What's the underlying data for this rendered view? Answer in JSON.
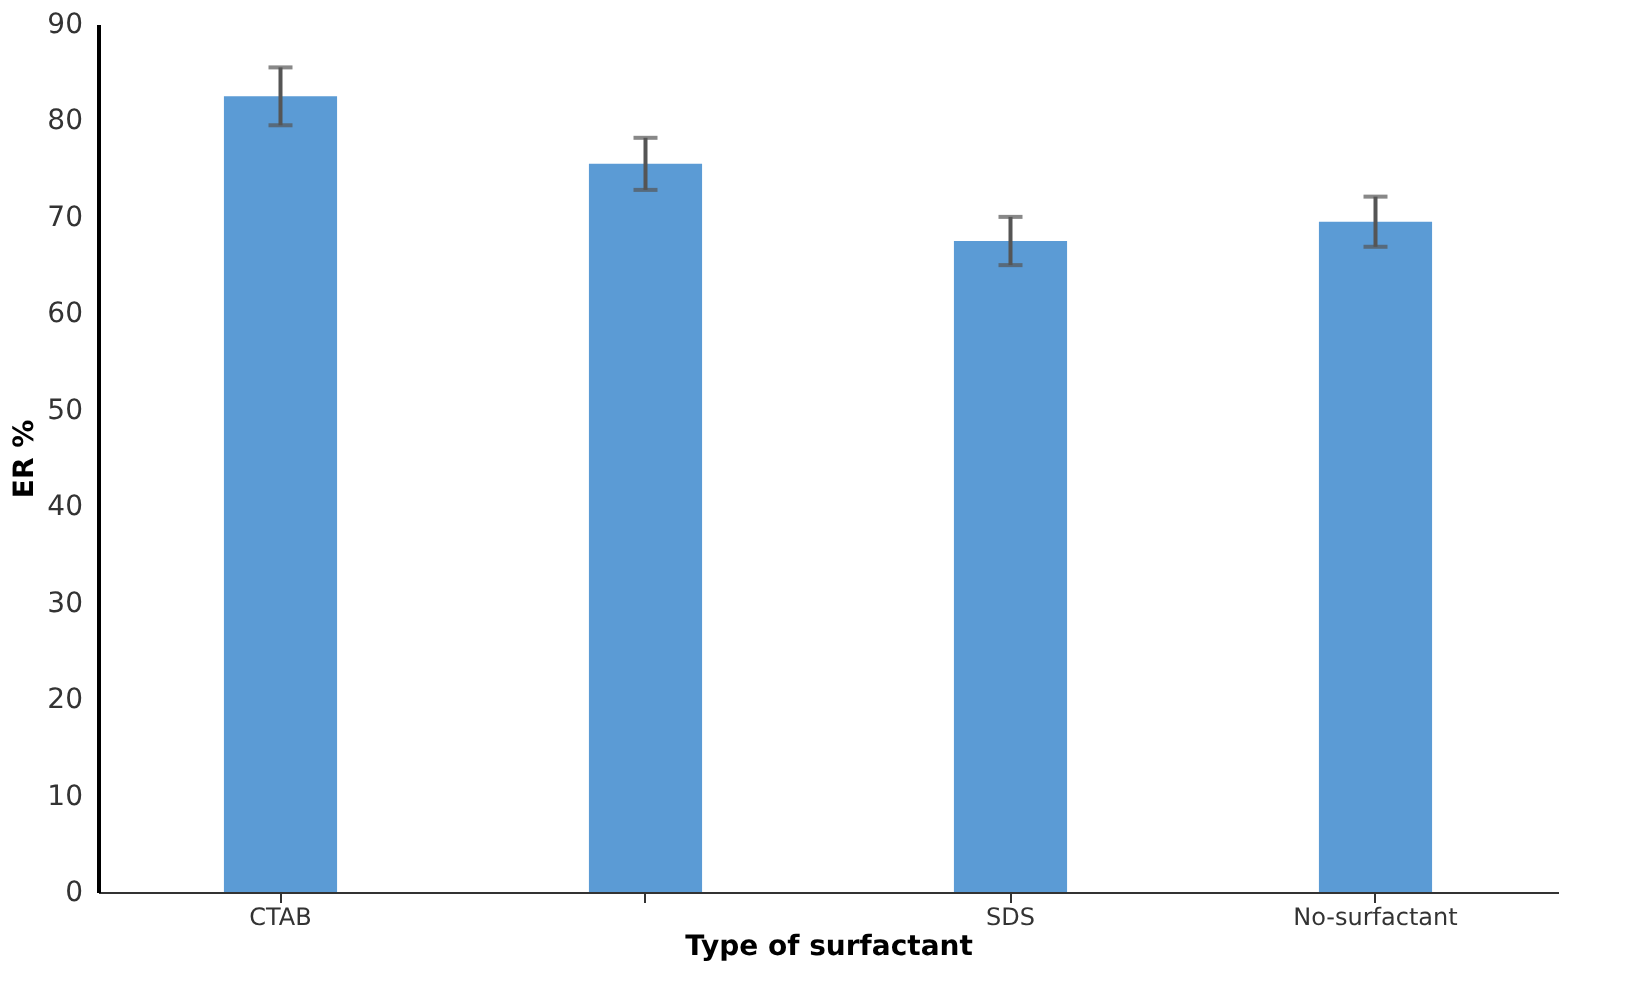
{
  "chart_data": {
    "type": "bar",
    "xlabel": "Type of surfactant",
    "ylabel": "ER %",
    "categories": [
      "CTAB",
      null,
      "SDS",
      "No-surfactant"
    ],
    "values": [
      82.5,
      75.5,
      67.5,
      69.5
    ],
    "errors": [
      3,
      2.7,
      2.5,
      2.6
    ],
    "color": "#5b9bd5",
    "ylim": [
      0,
      90
    ],
    "yticks": [
      0,
      10,
      20,
      30,
      40,
      50,
      60,
      70,
      80,
      90
    ],
    "grid": false
  }
}
